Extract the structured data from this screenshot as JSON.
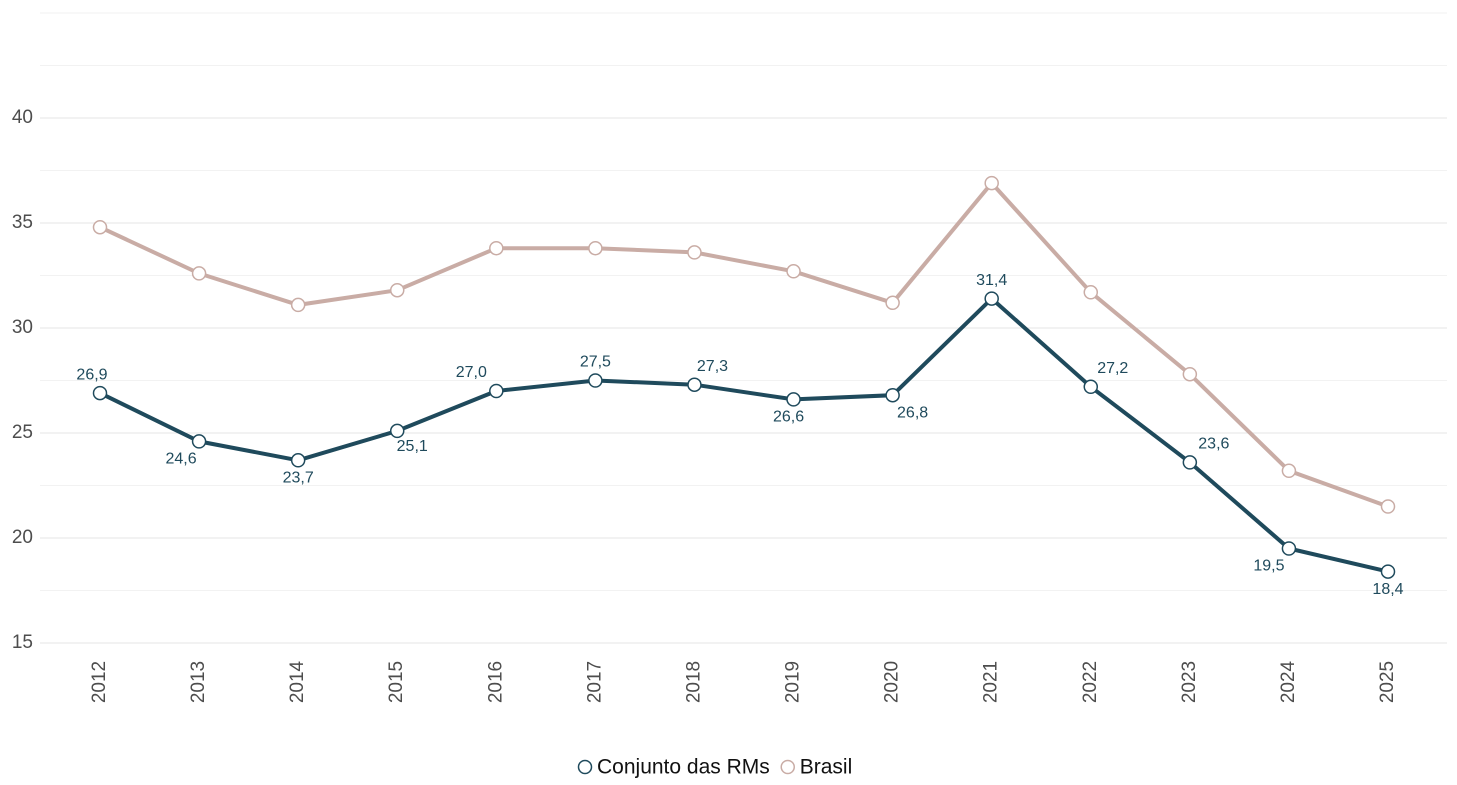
{
  "chart_data": {
    "type": "line",
    "x": [
      2012,
      2013,
      2014,
      2015,
      2016,
      2017,
      2018,
      2019,
      2020,
      2021,
      2022,
      2023,
      2024,
      2025
    ],
    "series": [
      {
        "name": "Conjunto das RMs",
        "color": "#1f4a5c",
        "values": [
          26.9,
          24.6,
          23.7,
          25.1,
          27.0,
          27.5,
          27.3,
          26.6,
          26.8,
          31.4,
          27.2,
          23.6,
          19.5,
          18.4
        ],
        "value_labels": [
          "26,9",
          "24,6",
          "23,7",
          "25,1",
          "27,0",
          "27,5",
          "27,3",
          "26,6",
          "26,8",
          "31,4",
          "27,2",
          "23,6",
          "19,5",
          "18,4"
        ]
      },
      {
        "name": "Brasil",
        "color": "#c9aca5",
        "values": [
          34.8,
          32.6,
          31.1,
          31.8,
          33.8,
          33.8,
          33.6,
          32.7,
          31.2,
          36.9,
          31.7,
          27.8,
          23.2,
          21.5
        ]
      }
    ],
    "ylim": [
      14,
      45.5
    ],
    "yticks": [
      15,
      20,
      25,
      30,
      35,
      40
    ],
    "minor_grid": [
      17.5,
      22.5,
      27.5,
      32.5,
      37.5,
      42.5,
      45
    ],
    "grid": true,
    "legend": "bottom"
  }
}
